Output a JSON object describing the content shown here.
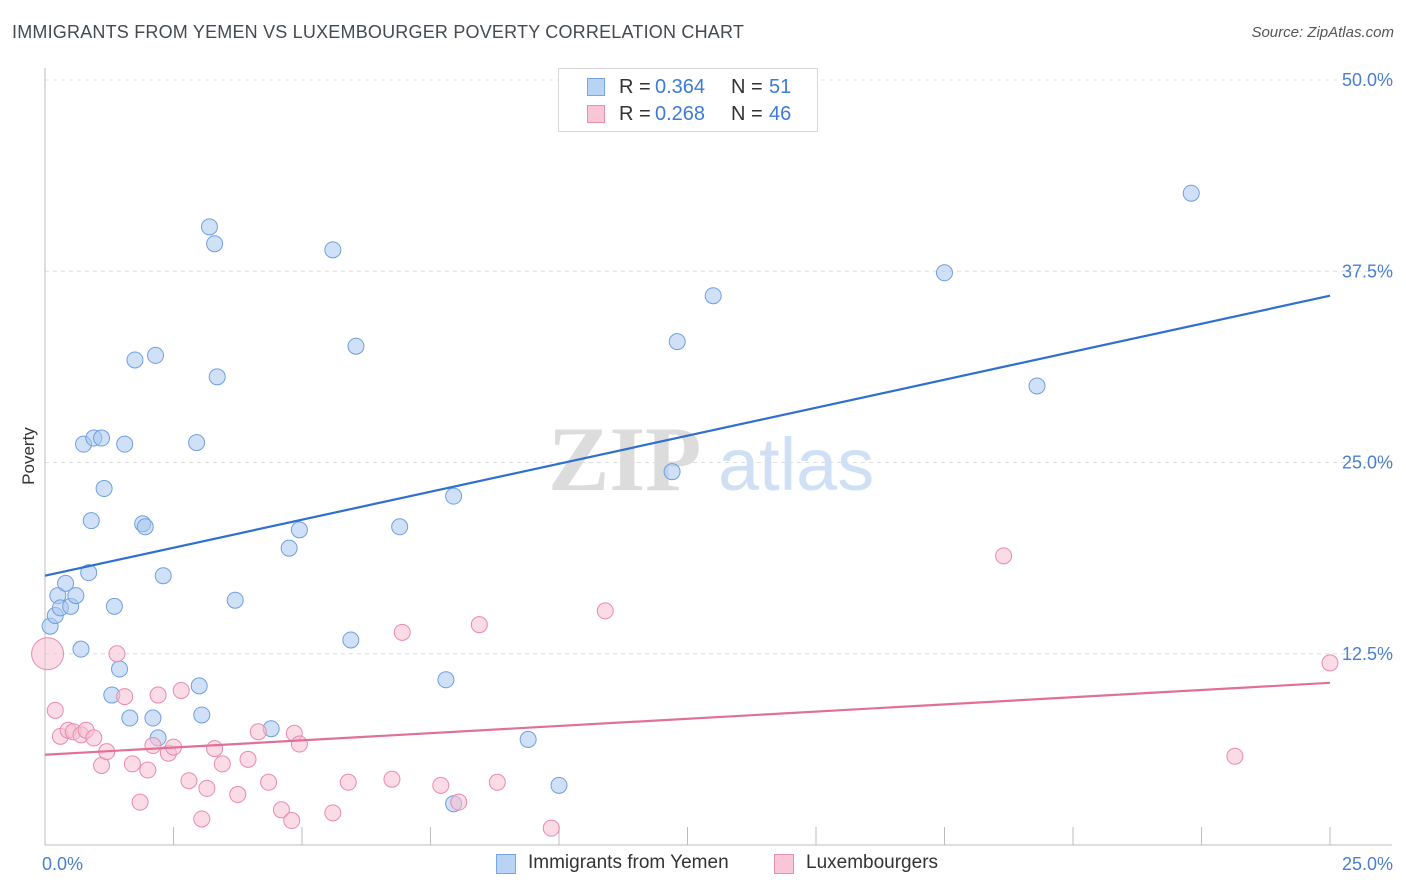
{
  "header": {
    "title": "IMMIGRANTS FROM YEMEN VS LUXEMBOURGER POVERTY CORRELATION CHART",
    "source": "Source: ZipAtlas.com"
  },
  "watermark": {
    "zip": "ZIP",
    "atlas": "atlas"
  },
  "legend": {
    "rows": [
      {
        "r_label": "R =",
        "r_value": "0.364",
        "n_label": "N =",
        "n_value": "51",
        "color": "#b9d3f5",
        "border": "#7aa6e0"
      },
      {
        "r_label": "R =",
        "r_value": "0.268",
        "n_label": "N =",
        "n_value": "46",
        "color": "#f9c6d6",
        "border": "#e88fab"
      }
    ]
  },
  "bottom_legend": [
    {
      "label": "Immigrants from Yemen",
      "color": "#b9d3f5",
      "border": "#7aa6e0"
    },
    {
      "label": "Luxembourgers",
      "color": "#f9c6d6",
      "border": "#e88fab"
    }
  ],
  "chart_data": {
    "type": "scatter",
    "ylabel": "Poverty",
    "xlim": [
      0,
      25
    ],
    "ylim": [
      0,
      50
    ],
    "y_ticks": [
      {
        "value": 12.5,
        "label": "12.5%"
      },
      {
        "value": 25.0,
        "label": "25.0%"
      },
      {
        "value": 37.5,
        "label": "37.5%"
      },
      {
        "value": 50.0,
        "label": "50.0%"
      }
    ],
    "x_tick_labels": [
      {
        "value": 0,
        "label": "0.0%"
      },
      {
        "value": 25,
        "label": "25.0%"
      }
    ],
    "grid": true,
    "legend_position": "top-center",
    "series": [
      {
        "name": "Immigrants from Yemen",
        "color": "#a9c8f0",
        "stroke": "#6e9fe0",
        "line_color": "#2f6fcf",
        "trend": {
          "x": [
            0,
            25
          ],
          "y": [
            17.6,
            35.9
          ]
        },
        "points": [
          [
            0.1,
            14.3
          ],
          [
            0.2,
            15.0
          ],
          [
            0.25,
            16.3
          ],
          [
            0.3,
            15.5
          ],
          [
            0.4,
            17.1
          ],
          [
            0.5,
            15.6
          ],
          [
            0.6,
            16.3
          ],
          [
            0.7,
            12.8
          ],
          [
            0.75,
            26.2
          ],
          [
            0.85,
            17.8
          ],
          [
            0.9,
            21.2
          ],
          [
            0.95,
            26.6
          ],
          [
            1.1,
            26.6
          ],
          [
            1.15,
            23.3
          ],
          [
            1.3,
            9.8
          ],
          [
            1.35,
            15.6
          ],
          [
            1.45,
            11.5
          ],
          [
            1.55,
            26.2
          ],
          [
            1.65,
            8.3
          ],
          [
            1.75,
            31.7
          ],
          [
            1.9,
            21.0
          ],
          [
            1.95,
            20.8
          ],
          [
            2.1,
            8.3
          ],
          [
            2.15,
            32.0
          ],
          [
            2.2,
            7.0
          ],
          [
            2.3,
            17.6
          ],
          [
            2.95,
            26.3
          ],
          [
            3.0,
            10.4
          ],
          [
            3.05,
            8.5
          ],
          [
            3.2,
            40.4
          ],
          [
            3.3,
            39.3
          ],
          [
            3.35,
            30.6
          ],
          [
            3.7,
            16.0
          ],
          [
            4.4,
            7.6
          ],
          [
            4.75,
            19.4
          ],
          [
            4.95,
            20.6
          ],
          [
            5.6,
            38.9
          ],
          [
            5.95,
            13.4
          ],
          [
            6.05,
            32.6
          ],
          [
            6.9,
            20.8
          ],
          [
            7.8,
            10.8
          ],
          [
            7.95,
            2.7
          ],
          [
            7.95,
            22.8
          ],
          [
            9.4,
            6.9
          ],
          [
            10.0,
            3.9
          ],
          [
            12.2,
            24.4
          ],
          [
            12.3,
            32.9
          ],
          [
            13.0,
            35.9
          ],
          [
            17.5,
            37.4
          ],
          [
            19.3,
            30.0
          ],
          [
            22.3,
            42.6
          ]
        ]
      },
      {
        "name": "Luxembourgers",
        "color": "#f7bfd1",
        "stroke": "#e98aa9",
        "line_color": "#e0709a",
        "trend": {
          "x": [
            0,
            25
          ],
          "y": [
            5.9,
            10.6
          ]
        },
        "points": [
          [
            0.05,
            12.5
          ],
          [
            0.2,
            8.8
          ],
          [
            0.3,
            7.1
          ],
          [
            0.45,
            7.5
          ],
          [
            0.55,
            7.4
          ],
          [
            0.7,
            7.2
          ],
          [
            0.8,
            7.5
          ],
          [
            0.95,
            7.0
          ],
          [
            1.1,
            5.2
          ],
          [
            1.2,
            6.1
          ],
          [
            1.4,
            12.5
          ],
          [
            1.55,
            9.7
          ],
          [
            1.7,
            5.3
          ],
          [
            1.85,
            2.8
          ],
          [
            2.0,
            4.9
          ],
          [
            2.1,
            6.5
          ],
          [
            2.2,
            9.8
          ],
          [
            2.4,
            6.0
          ],
          [
            2.5,
            6.4
          ],
          [
            2.65,
            10.1
          ],
          [
            2.8,
            4.2
          ],
          [
            3.05,
            1.7
          ],
          [
            3.15,
            3.7
          ],
          [
            3.3,
            6.3
          ],
          [
            3.45,
            5.3
          ],
          [
            3.75,
            3.3
          ],
          [
            3.95,
            5.6
          ],
          [
            4.15,
            7.4
          ],
          [
            4.35,
            4.1
          ],
          [
            4.6,
            2.3
          ],
          [
            4.8,
            1.6
          ],
          [
            4.85,
            7.3
          ],
          [
            4.95,
            6.6
          ],
          [
            5.6,
            2.1
          ],
          [
            5.9,
            4.1
          ],
          [
            6.75,
            4.3
          ],
          [
            6.95,
            13.9
          ],
          [
            7.7,
            3.9
          ],
          [
            8.05,
            2.8
          ],
          [
            8.45,
            14.4
          ],
          [
            8.8,
            4.1
          ],
          [
            9.85,
            1.1
          ],
          [
            10.9,
            15.3
          ],
          [
            18.65,
            18.9
          ],
          [
            23.15,
            5.8
          ],
          [
            25.0,
            11.9
          ]
        ]
      }
    ]
  }
}
